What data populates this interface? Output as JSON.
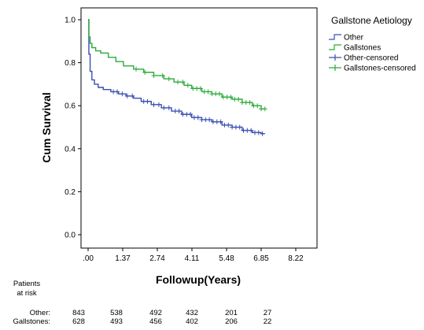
{
  "chart_data": {
    "type": "line",
    "xlabel": "Followup(Years)",
    "ylabel": "Cum Survival",
    "xlim": [
      0,
      8.22
    ],
    "ylim": [
      0,
      1.0
    ],
    "x_ticks": [
      0,
      1.37,
      2.74,
      4.11,
      5.48,
      6.85,
      8.22
    ],
    "x_tick_labels": [
      ".00",
      "1.37",
      "2.74",
      "4.11",
      "5.48",
      "6.85",
      "8.22"
    ],
    "y_ticks": [
      0,
      0.2,
      0.4,
      0.6,
      0.8,
      1.0
    ],
    "y_tick_labels": [
      "0.0",
      "0.2",
      "0.4",
      "0.6",
      "0.8",
      "1.0"
    ],
    "grid": false,
    "legend_title": "Gallstone Aetiology",
    "legend_placement": "right",
    "legend": [
      "Other",
      "Gallstones",
      "Other-censored",
      "Gallstones-censored"
    ],
    "series": [
      {
        "name": "Other",
        "color": "#3a4fb0",
        "x": [
          0,
          0.03,
          0.08,
          0.15,
          0.25,
          0.4,
          0.6,
          0.9,
          1.2,
          1.5,
          1.8,
          2.1,
          2.5,
          2.9,
          3.3,
          3.7,
          4.1,
          4.5,
          4.9,
          5.3,
          5.7,
          6.1,
          6.5,
          6.85,
          7.0
        ],
        "y": [
          1.0,
          0.84,
          0.76,
          0.72,
          0.7,
          0.685,
          0.675,
          0.665,
          0.655,
          0.645,
          0.635,
          0.62,
          0.605,
          0.59,
          0.575,
          0.56,
          0.545,
          0.535,
          0.525,
          0.51,
          0.5,
          0.485,
          0.475,
          0.47,
          0.47
        ],
        "censored_x": [
          1.0,
          1.15,
          1.35,
          1.55,
          1.75,
          2.2,
          2.35,
          2.6,
          2.8,
          3.0,
          3.2,
          3.45,
          3.6,
          3.75,
          3.9,
          4.05,
          4.2,
          4.35,
          4.5,
          4.65,
          4.8,
          4.95,
          5.1,
          5.25,
          5.4,
          5.55,
          5.7,
          5.85,
          6.0,
          6.15,
          6.3,
          6.45,
          6.6,
          6.75,
          6.9
        ]
      },
      {
        "name": "Gallstones",
        "color": "#2bab3a",
        "x": [
          0,
          0.03,
          0.08,
          0.15,
          0.3,
          0.5,
          0.8,
          1.1,
          1.4,
          1.8,
          2.2,
          2.6,
          3.0,
          3.4,
          3.8,
          4.1,
          4.5,
          4.9,
          5.3,
          5.7,
          6.1,
          6.5,
          6.85,
          7.0
        ],
        "y": [
          1.0,
          0.92,
          0.89,
          0.87,
          0.855,
          0.845,
          0.825,
          0.805,
          0.785,
          0.77,
          0.755,
          0.74,
          0.725,
          0.71,
          0.695,
          0.68,
          0.665,
          0.655,
          0.64,
          0.63,
          0.615,
          0.6,
          0.585,
          0.585
        ],
        "censored_x": [
          1.9,
          2.25,
          2.6,
          2.95,
          3.2,
          3.55,
          3.75,
          3.95,
          4.15,
          4.3,
          4.45,
          4.6,
          4.75,
          4.9,
          5.05,
          5.2,
          5.35,
          5.5,
          5.65,
          5.8,
          5.95,
          6.1,
          6.25,
          6.4,
          6.55,
          6.7,
          6.85,
          7.0
        ]
      }
    ]
  },
  "risk_table": {
    "title_line1": "Patients",
    "title_line2": "at risk",
    "rows": [
      {
        "label": "Other:",
        "values": [
          "843",
          "538",
          "492",
          "432",
          "201",
          "27"
        ]
      },
      {
        "label": "Gallstones:",
        "values": [
          "628",
          "493",
          "456",
          "402",
          "206",
          "22"
        ]
      }
    ]
  }
}
